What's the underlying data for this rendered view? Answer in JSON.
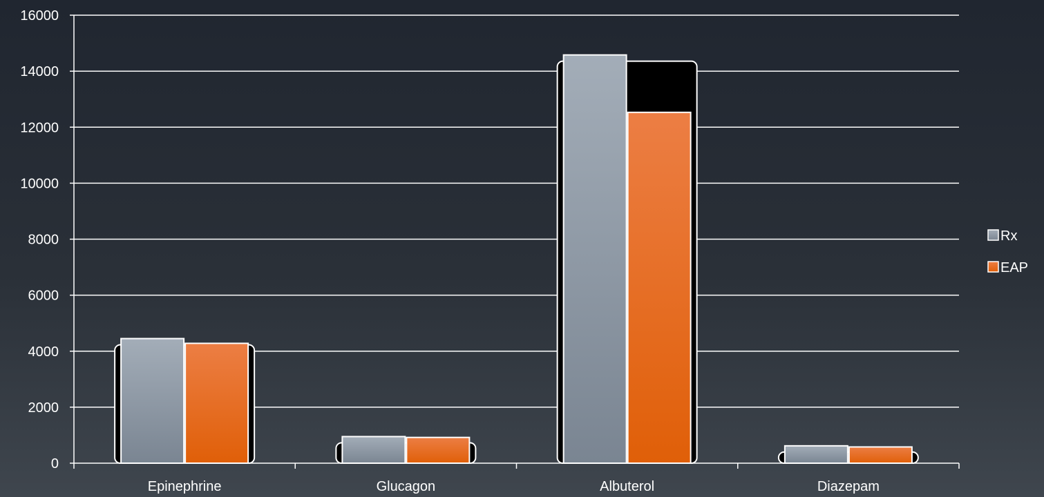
{
  "chart_data": {
    "type": "bar",
    "title": "",
    "xlabel": "",
    "ylabel": "",
    "categories": [
      "Epinephrine",
      "Glucagon",
      "Albuterol",
      "Diazepam"
    ],
    "series": [
      {
        "name": "Rx",
        "values": [
          4450,
          950,
          14580,
          620
        ],
        "color": "#8e98a4"
      },
      {
        "name": "EAP",
        "values": [
          4280,
          920,
          12530,
          580
        ],
        "color": "#e8650e"
      }
    ],
    "ylim": [
      0,
      16000
    ],
    "yticks": [
      0,
      2000,
      4000,
      6000,
      8000,
      10000,
      12000,
      14000,
      16000
    ],
    "grid": true,
    "legend": "right"
  }
}
